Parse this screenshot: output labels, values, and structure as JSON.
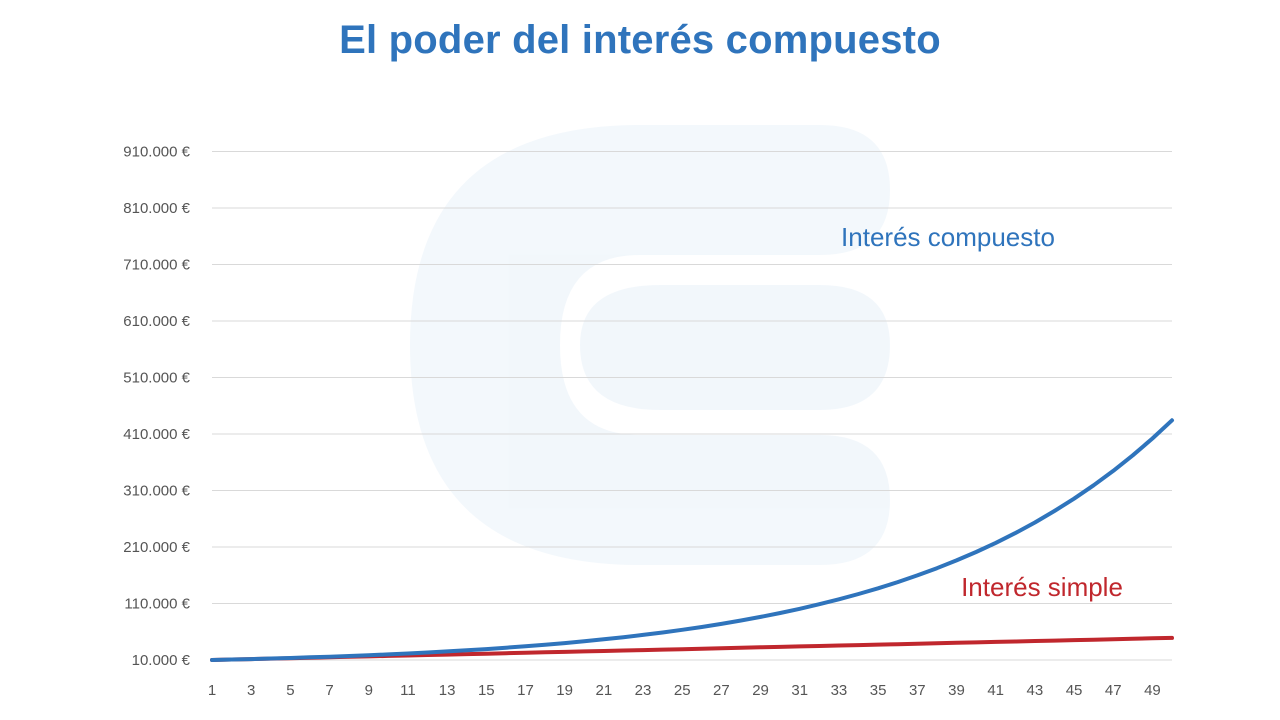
{
  "chart_data": {
    "type": "line",
    "title": "El poder del interés compuesto",
    "xlabel": "",
    "ylabel": "",
    "x": [
      1,
      2,
      3,
      4,
      5,
      6,
      7,
      8,
      9,
      10,
      11,
      12,
      13,
      14,
      15,
      16,
      17,
      18,
      19,
      20,
      21,
      22,
      23,
      24,
      25,
      26,
      27,
      28,
      29,
      30,
      31,
      32,
      33,
      34,
      35,
      36,
      37,
      38,
      39,
      40,
      41,
      42,
      43,
      44,
      45,
      46,
      47,
      48,
      49,
      50
    ],
    "x_tick_labels": [
      "1",
      "3",
      "5",
      "7",
      "9",
      "11",
      "13",
      "15",
      "17",
      "19",
      "21",
      "23",
      "25",
      "27",
      "29",
      "31",
      "33",
      "35",
      "37",
      "39",
      "41",
      "43",
      "45",
      "47",
      "49"
    ],
    "y_tick_values": [
      10000,
      110000,
      210000,
      310000,
      410000,
      510000,
      610000,
      710000,
      810000,
      910000
    ],
    "y_tick_labels": [
      "10.000 €",
      "110.000 €",
      "210.000 €",
      "310.000 €",
      "410.000 €",
      "510.000 €",
      "610.000 €",
      "710.000 €",
      "810.000 €",
      "910.000 €"
    ],
    "ylim": [
      10000,
      1010000
    ],
    "grid": true,
    "series": [
      {
        "name": "Interés compuesto",
        "color": "#2f74bc",
        "values": [
          10000,
          10800,
          11660,
          12600,
          13600,
          14700,
          15870,
          17140,
          18510,
          19990,
          21590,
          23320,
          25180,
          27200,
          29370,
          31720,
          34260,
          37000,
          39960,
          43160,
          46610,
          50340,
          54370,
          58720,
          63410,
          68480,
          73960,
          79880,
          86270,
          93170,
          100630,
          108680,
          117370,
          126760,
          136900,
          147860,
          159680,
          172460,
          186260,
          201150,
          217250,
          234620,
          253390,
          273660,
          295560,
          319200,
          344740,
          372320,
          402100,
          434280
        ]
      },
      {
        "name": "Interés simple",
        "color": "#c0272d",
        "values": [
          10000,
          10800,
          11600,
          12400,
          13200,
          14000,
          14800,
          15600,
          16400,
          17200,
          18000,
          18800,
          19600,
          20400,
          21200,
          22000,
          22800,
          23600,
          24400,
          25200,
          26000,
          26800,
          27600,
          28400,
          29200,
          30000,
          30800,
          31600,
          32400,
          33200,
          34000,
          34800,
          35600,
          36400,
          37200,
          38000,
          38800,
          39600,
          40400,
          41200,
          42000,
          42800,
          43600,
          44400,
          45200,
          46000,
          46800,
          47600,
          48400,
          49200
        ]
      }
    ]
  }
}
